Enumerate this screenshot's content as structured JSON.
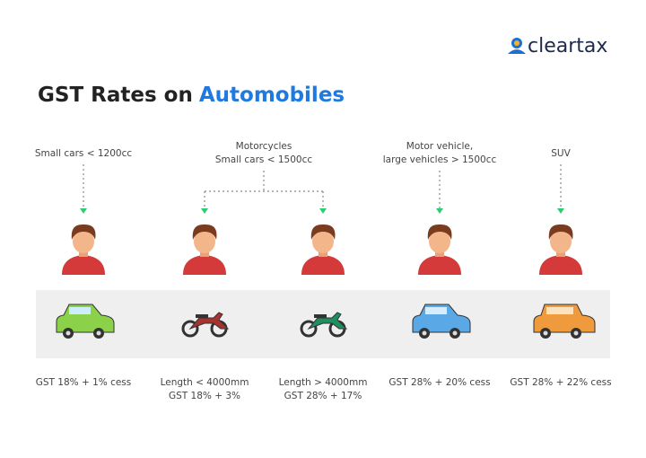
{
  "brand": "cleartax",
  "title": {
    "prefix": "GST Rates on",
    "highlight": "Automobiles"
  },
  "groups": [
    {
      "lines": [
        "Small cars < 1200cc"
      ]
    },
    {
      "lines": [
        "Motorcycles",
        "Small cars < 1500cc"
      ]
    },
    {
      "lines": [
        "Motor vehicle,",
        "large vehicles > 1500cc"
      ]
    },
    {
      "lines": [
        "SUV"
      ]
    }
  ],
  "columns": [
    {
      "rate": [
        "GST 18% + 1% cess"
      ]
    },
    {
      "rate": [
        "Length < 4000mm",
        "GST 18% + 3%"
      ]
    },
    {
      "rate": [
        "Length > 4000mm",
        "GST 28% + 17%"
      ]
    },
    {
      "rate": [
        "GST 28% + 20% cess"
      ]
    },
    {
      "rate": [
        "GST 28% + 22% cess"
      ]
    }
  ]
}
